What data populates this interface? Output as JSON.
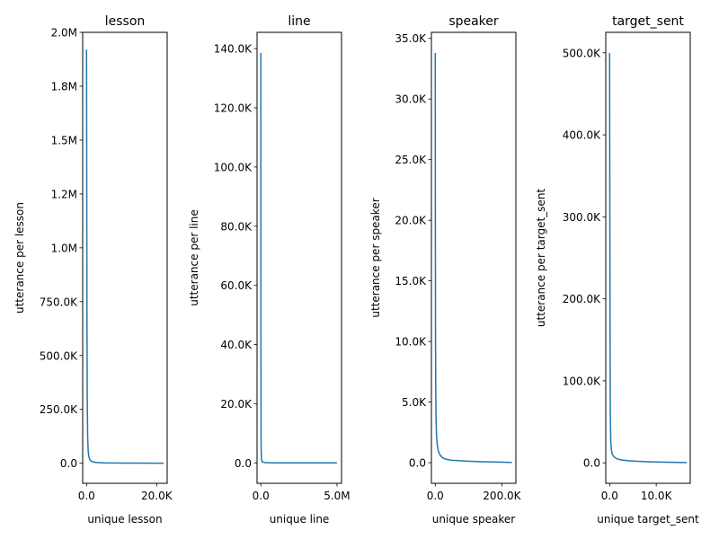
{
  "chart_data": [
    {
      "type": "line",
      "title": "lesson",
      "xlabel": "unique lesson",
      "ylabel": "utterance per lesson",
      "xlim": [
        -1100,
        23000
      ],
      "ylim": [
        -93000,
        2000000
      ],
      "xticks": [
        {
          "v": 0,
          "label": "0.0"
        },
        {
          "v": 20000,
          "label": "20.0K"
        }
      ],
      "yticks": [
        {
          "v": 0,
          "label": "0.0"
        },
        {
          "v": 250000,
          "label": "250.0K"
        },
        {
          "v": 500000,
          "label": "500.0K"
        },
        {
          "v": 750000,
          "label": "750.0K"
        },
        {
          "v": 1000000,
          "label": "1.0M"
        },
        {
          "v": 1250000,
          "label": "1.2M"
        },
        {
          "v": 1500000,
          "label": "1.5M"
        },
        {
          "v": 1750000,
          "label": "1.8M"
        },
        {
          "v": 2000000,
          "label": "2.0M"
        }
      ],
      "series": [
        {
          "color": "#1f77b4",
          "x": [
            0,
            60,
            120,
            200,
            320,
            480,
            700,
            1000,
            1500,
            2500,
            5000,
            10000,
            15000,
            20000,
            22000
          ],
          "y": [
            1920000,
            1350000,
            700000,
            300000,
            120000,
            55000,
            28000,
            15000,
            8000,
            4000,
            2000,
            1000,
            700,
            400,
            200
          ]
        }
      ]
    },
    {
      "type": "line",
      "title": "line",
      "xlabel": "unique line",
      "ylabel": "utterance per line",
      "xlim": [
        -250000,
        5300000
      ],
      "ylim": [
        -6900,
        145500
      ],
      "xticks": [
        {
          "v": 0,
          "label": "0.0"
        },
        {
          "v": 5000000,
          "label": "5.0M"
        }
      ],
      "yticks": [
        {
          "v": 0,
          "label": "0.0"
        },
        {
          "v": 20000,
          "label": "20.0K"
        },
        {
          "v": 40000,
          "label": "40.0K"
        },
        {
          "v": 60000,
          "label": "60.0K"
        },
        {
          "v": 80000,
          "label": "80.0K"
        },
        {
          "v": 100000,
          "label": "100.0K"
        },
        {
          "v": 120000,
          "label": "120.0K"
        },
        {
          "v": 140000,
          "label": "140.0K"
        }
      ],
      "series": [
        {
          "color": "#1f77b4",
          "x": [
            0,
            5000,
            15000,
            40000,
            100000,
            300000,
            1000000,
            3000000,
            5000000
          ],
          "y": [
            138500,
            40000,
            6000,
            1200,
            300,
            80,
            20,
            5,
            1
          ]
        }
      ]
    },
    {
      "type": "line",
      "title": "speaker",
      "xlabel": "unique speaker",
      "ylabel": "utterance per speaker",
      "xlim": [
        -11500,
        242000
      ],
      "ylim": [
        -1700,
        35500
      ],
      "xticks": [
        {
          "v": 0,
          "label": "0.0"
        },
        {
          "v": 200000,
          "label": "200.0K"
        }
      ],
      "yticks": [
        {
          "v": 0,
          "label": "0.0"
        },
        {
          "v": 5000,
          "label": "5.0K"
        },
        {
          "v": 10000,
          "label": "10.0K"
        },
        {
          "v": 15000,
          "label": "15.0K"
        },
        {
          "v": 20000,
          "label": "20.0K"
        },
        {
          "v": 25000,
          "label": "25.0K"
        },
        {
          "v": 30000,
          "label": "30.0K"
        },
        {
          "v": 35000,
          "label": "35.0K"
        }
      ],
      "series": [
        {
          "color": "#1f77b4",
          "x": [
            0,
            400,
            800,
            1500,
            2500,
            4000,
            6000,
            9000,
            13000,
            20000,
            30000,
            50000,
            80000,
            120000,
            160000,
            200000,
            230000
          ],
          "y": [
            33800,
            20000,
            11000,
            6000,
            3500,
            2200,
            1500,
            1000,
            700,
            450,
            300,
            200,
            150,
            100,
            70,
            40,
            20
          ]
        }
      ]
    },
    {
      "type": "line",
      "title": "target_sent",
      "xlabel": "unique target_sent",
      "ylabel": "utterance per target_sent",
      "xlim": [
        -830,
        17300
      ],
      "ylim": [
        -25000,
        525000
      ],
      "xticks": [
        {
          "v": 0,
          "label": "0.0"
        },
        {
          "v": 10000,
          "label": "10.0K"
        }
      ],
      "yticks": [
        {
          "v": 0,
          "label": "0.0"
        },
        {
          "v": 100000,
          "label": "100.0K"
        },
        {
          "v": 200000,
          "label": "200.0K"
        },
        {
          "v": 300000,
          "label": "300.0K"
        },
        {
          "v": 400000,
          "label": "400.0K"
        },
        {
          "v": 500000,
          "label": "500.0K"
        }
      ],
      "series": [
        {
          "color": "#1f77b4",
          "x": [
            0,
            50,
            100,
            150,
            250,
            400,
            600,
            1000,
            1500,
            2500,
            4000,
            6000,
            9000,
            12000,
            16500
          ],
          "y": [
            500000,
            300000,
            150000,
            60000,
            25000,
            15000,
            10000,
            7000,
            5000,
            3500,
            2500,
            1800,
            1200,
            800,
            300
          ]
        }
      ]
    }
  ]
}
